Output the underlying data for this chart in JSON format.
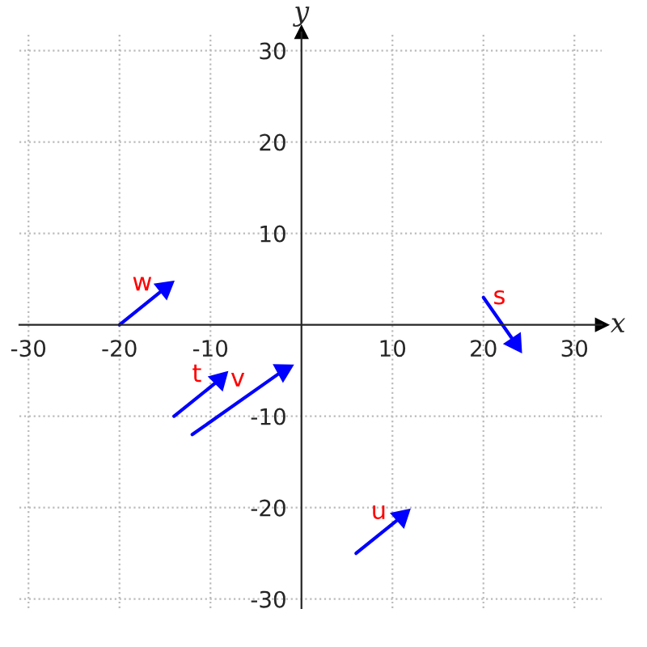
{
  "chart_data": {
    "type": "line",
    "xlabel": "x",
    "ylabel": "y",
    "series": [
      {
        "name": "w",
        "color": "#0000ff",
        "x": [
          -20,
          -15
        ],
        "values": [
          0,
          4
        ]
      },
      {
        "name": "t",
        "color": "#0000ff",
        "x": [
          -14,
          -9
        ],
        "values": [
          -10,
          -6
        ]
      },
      {
        "name": "v",
        "color": "#0000ff",
        "x": [
          -12,
          -2
        ],
        "values": [
          -12,
          -5
        ]
      },
      {
        "name": "u",
        "color": "#0000ff",
        "x": [
          6,
          11
        ],
        "values": [
          -25,
          -21
        ]
      },
      {
        "name": "s",
        "color": "#0000ff",
        "x": [
          20,
          23.5
        ],
        "values": [
          3,
          -2
        ]
      }
    ],
    "xlim": [
      -31,
      33
    ],
    "ylim": [
      -31,
      32
    ],
    "xticks": [
      -30,
      -20,
      -10,
      10,
      20,
      30
    ],
    "yticks": [
      -30,
      -20,
      -10,
      10,
      20,
      30
    ],
    "grid": true,
    "line_style": "solid"
  }
}
